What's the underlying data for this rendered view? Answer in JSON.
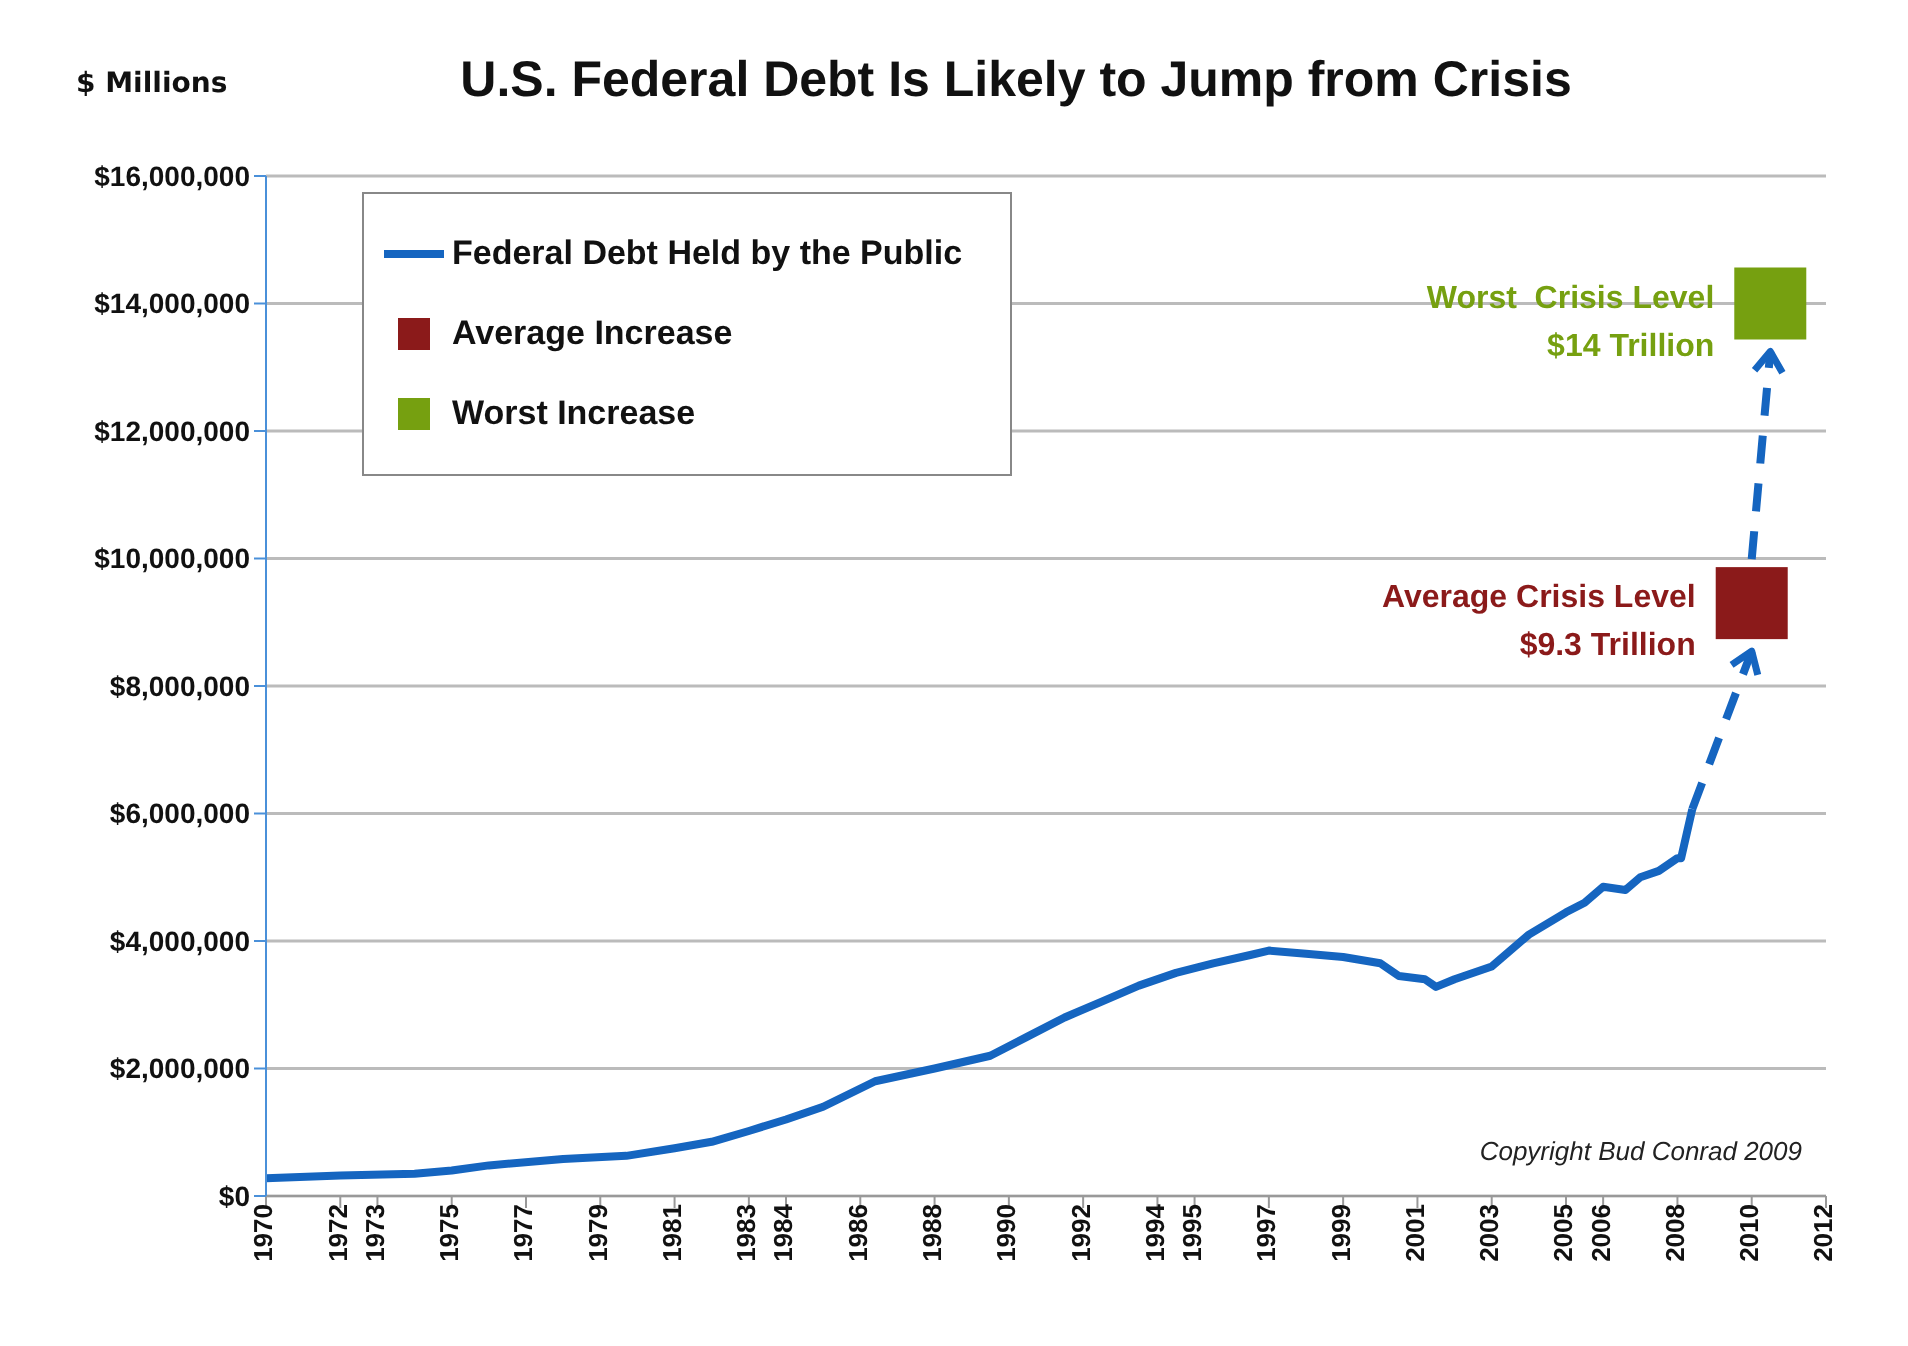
{
  "chart_data": {
    "type": "line",
    "title": "U.S. Federal Debt Is Likely to Jump from Crisis",
    "ylabel": "$ Millions",
    "xlim": [
      1970,
      2012
    ],
    "xticks": [
      1970,
      1972,
      1973,
      1975,
      1977,
      1979,
      1981,
      1983,
      1984,
      1986,
      1988,
      1990,
      1992,
      1994,
      1995,
      1997,
      1999,
      2001,
      2003,
      2005,
      2006,
      2008,
      2010,
      2012
    ],
    "ylim": [
      0,
      16000000
    ],
    "yticks": [
      {
        "value": 0,
        "label": "$0"
      },
      {
        "value": 2000000,
        "label": "$2,000,000"
      },
      {
        "value": 4000000,
        "label": "$4,000,000"
      },
      {
        "value": 6000000,
        "label": "$6,000,000"
      },
      {
        "value": 8000000,
        "label": "$8,000,000"
      },
      {
        "value": 10000000,
        "label": "$10,000,000"
      },
      {
        "value": 12000000,
        "label": "$12,000,000"
      },
      {
        "value": 14000000,
        "label": "$14,000,000"
      },
      {
        "value": 16000000,
        "label": "$16,000,000"
      }
    ],
    "grid": "y",
    "legend": "top left",
    "series": [
      {
        "name": "Federal Debt Held by the Public",
        "color": "#1565c0",
        "marker": "none",
        "x": [
          1970,
          1972,
          1974,
          1975,
          1976,
          1978,
          1979.7,
          1981,
          1982,
          1983,
          1984,
          1985,
          1986.4,
          1988,
          1989.5,
          1990.5,
          1991.5,
          1992.5,
          1993.5,
          1994.5,
          1995.5,
          1996.5,
          1997,
          1998,
          1999,
          2000,
          2000.5,
          2001.2,
          2001.5,
          2002,
          2003,
          2004,
          2005,
          2005.5,
          2006,
          2006.6,
          2007,
          2007.5,
          2008,
          2008.1,
          2008.4
        ],
        "values": [
          280000,
          320000,
          350000,
          400000,
          480000,
          580000,
          630000,
          750000,
          850000,
          1020000,
          1200000,
          1400000,
          1800000,
          2000000,
          2200000,
          2500000,
          2800000,
          3050000,
          3300000,
          3500000,
          3650000,
          3780000,
          3850000,
          3800000,
          3750000,
          3650000,
          3450000,
          3400000,
          3280000,
          3400000,
          3600000,
          4100000,
          4450000,
          4600000,
          4850000,
          4800000,
          5000000,
          5100000,
          5300000,
          5300000,
          6070000
        ]
      },
      {
        "name": "Average Increase",
        "type": "scatter",
        "color": "#8b1a1a",
        "marker": "square",
        "x": [
          2010
        ],
        "values": [
          9300000
        ]
      },
      {
        "name": "Worst Increase",
        "type": "scatter",
        "color": "#76a010",
        "marker": "square",
        "x": [
          2010.5
        ],
        "values": [
          14000000
        ]
      }
    ],
    "annotations": [
      {
        "text": "Average Crisis Level\n$9.3 Trillion",
        "x": 2010,
        "y": 9300000
      },
      {
        "text": "Worst  Crisis Level\n$14 Trillion",
        "x": 2010.5,
        "y": 14000000
      },
      "Copyright Bud Conrad  2009"
    ]
  }
}
